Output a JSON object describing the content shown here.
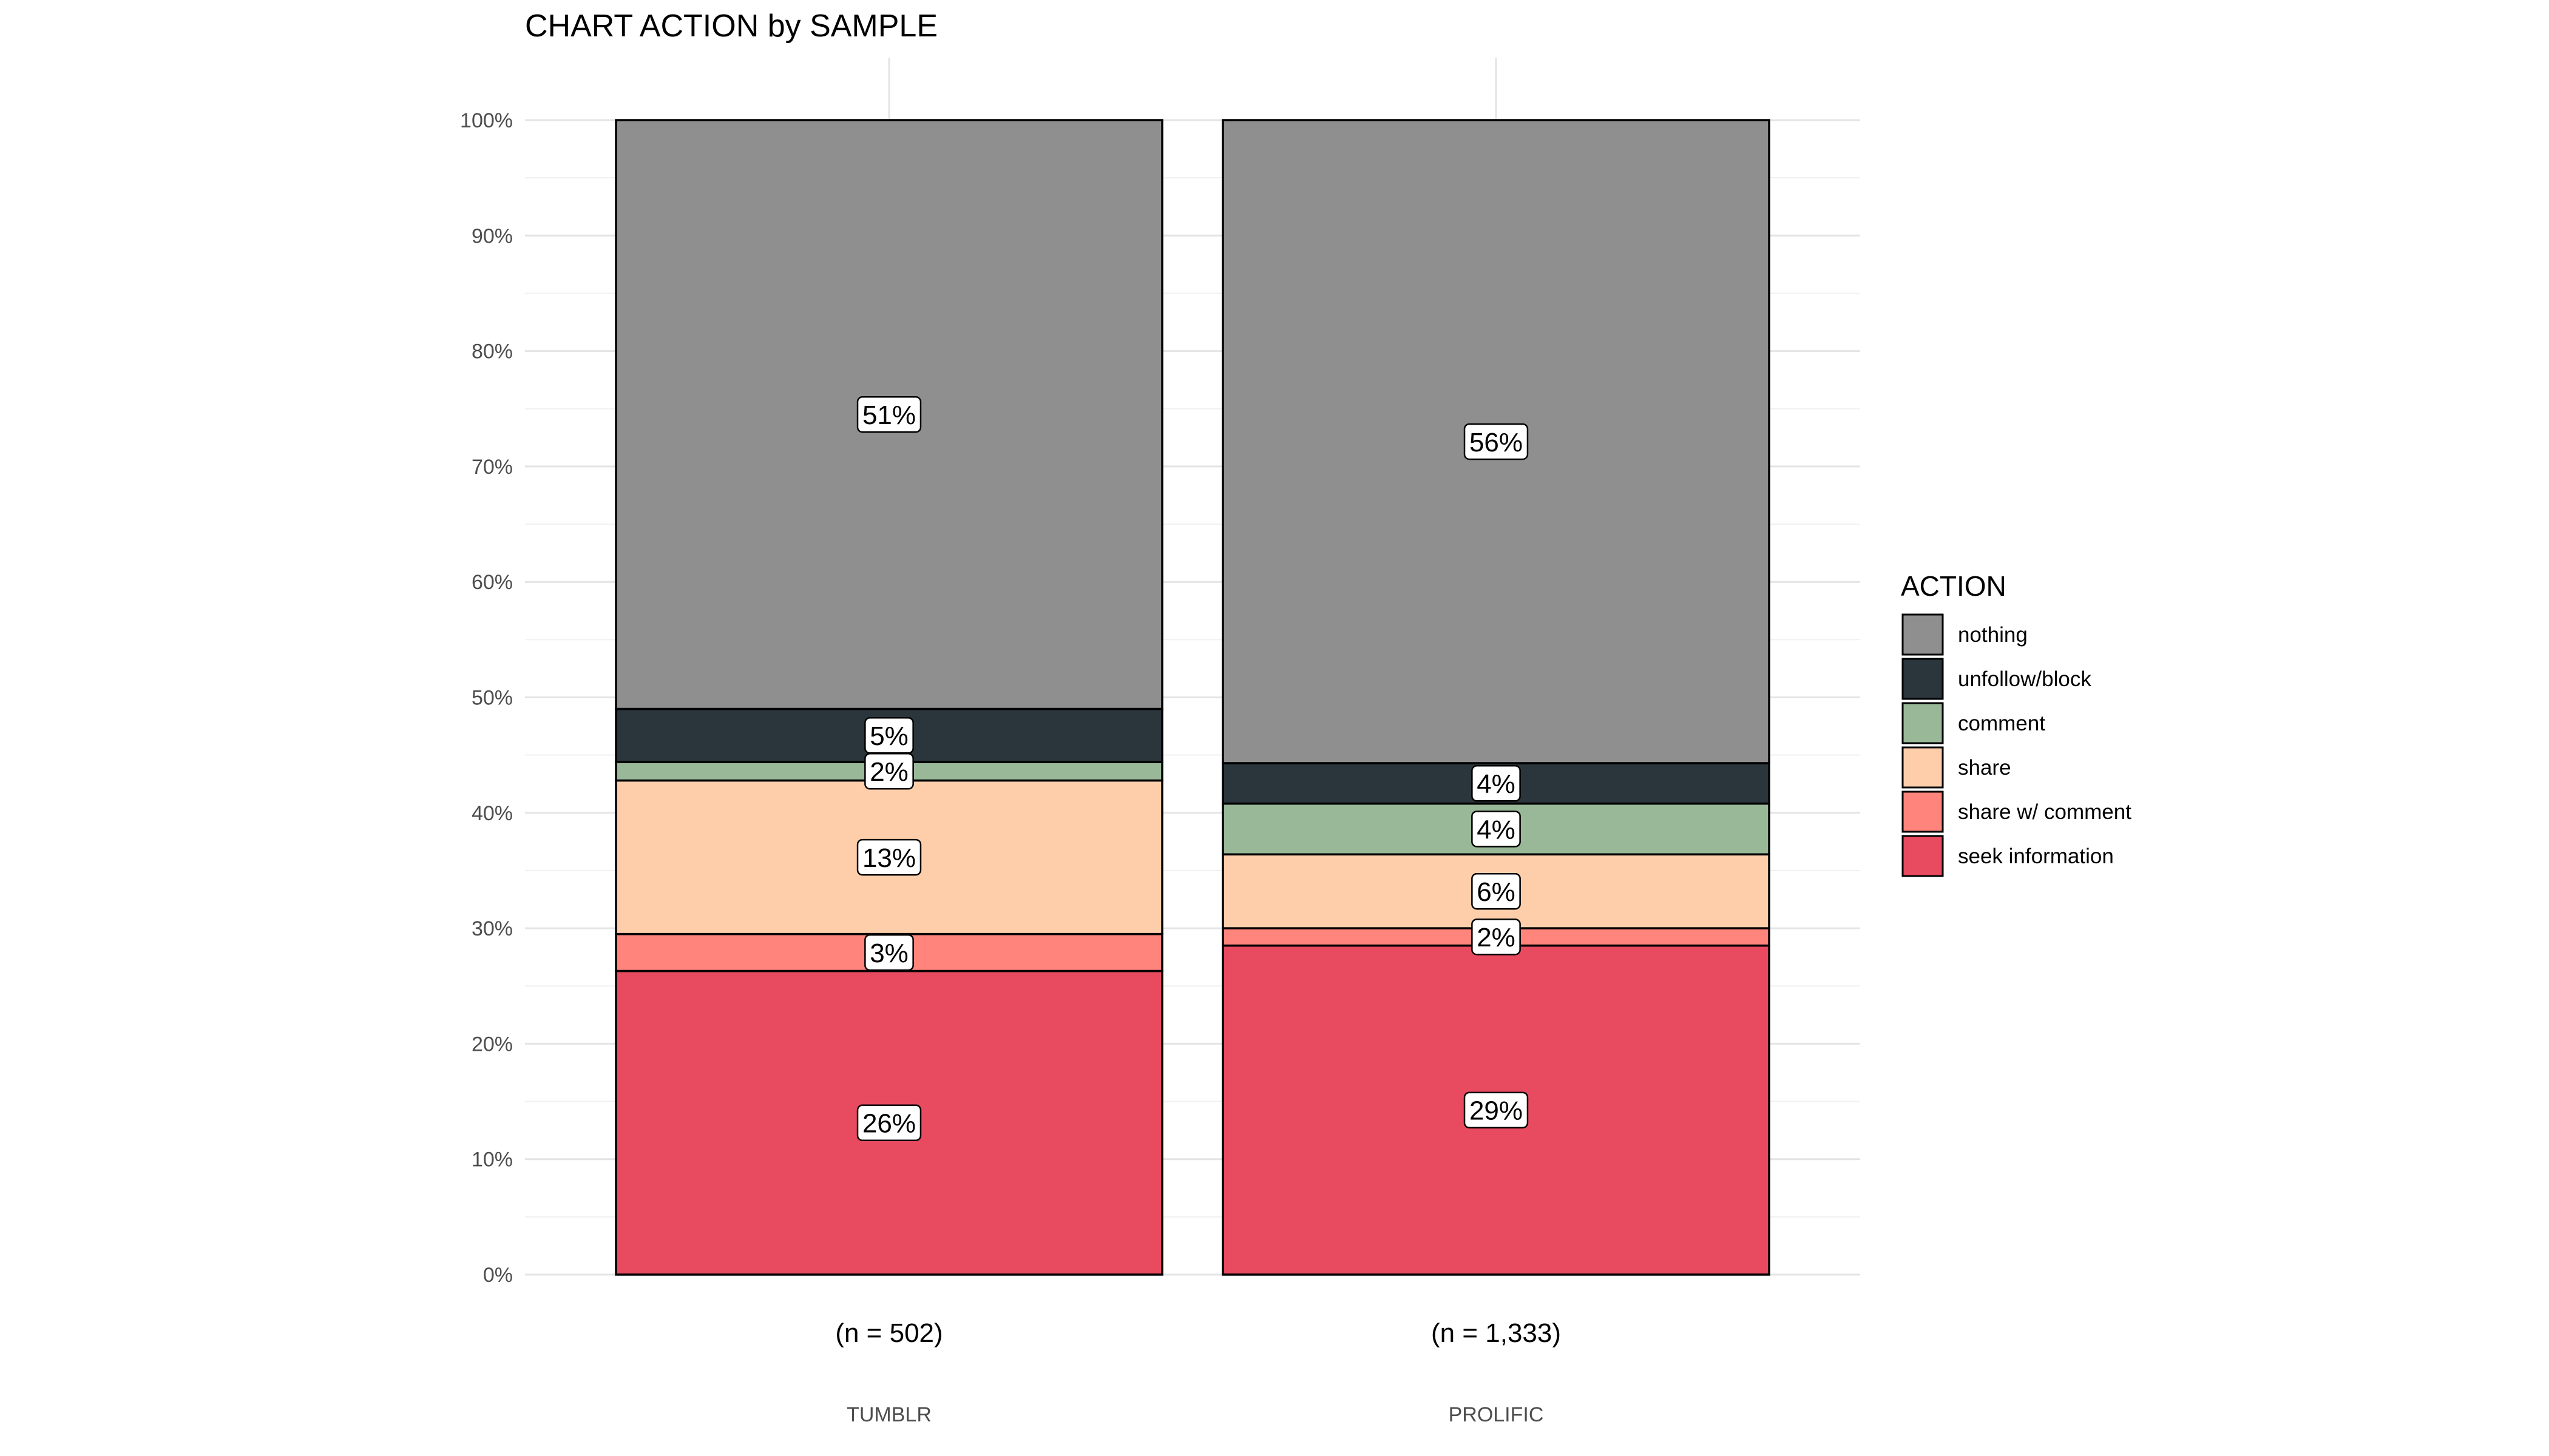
{
  "chart_data": {
    "type": "bar",
    "stacked": true,
    "normalized": true,
    "title": "CHART ACTION by SAMPLE",
    "xlabel": "",
    "ylabel": "",
    "ylim": [
      0,
      100
    ],
    "y_ticks": [
      "0%",
      "10%",
      "20%",
      "30%",
      "40%",
      "50%",
      "60%",
      "70%",
      "80%",
      "90%",
      "100%"
    ],
    "grid": true,
    "categories": [
      "TUMBLR",
      "PROLIFIC"
    ],
    "sample_sizes": [
      "(n = 502)",
      "(n = 1,333)"
    ],
    "legend": {
      "title": "ACTION",
      "position": "right"
    },
    "series": [
      {
        "name": "seek information",
        "color": "#E84A5F",
        "values": [
          26.3,
          28.5
        ],
        "labels": [
          "26%",
          "29%"
        ]
      },
      {
        "name": "share w/ comment",
        "color": "#FF847C",
        "values": [
          3.2,
          1.5
        ],
        "labels": [
          "3%",
          "2%"
        ]
      },
      {
        "name": "share",
        "color": "#FECEAB",
        "values": [
          13.3,
          6.4
        ],
        "labels": [
          "13%",
          "6%"
        ]
      },
      {
        "name": "comment",
        "color": "#99B898",
        "values": [
          1.6,
          4.4
        ],
        "labels": [
          "2%",
          "4%"
        ]
      },
      {
        "name": "unfollow/block",
        "color": "#2A363B",
        "values": [
          4.6,
          3.5
        ],
        "labels": [
          "5%",
          "4%"
        ]
      },
      {
        "name": "nothing",
        "color": "#8F8F8F",
        "values": [
          51.0,
          55.7
        ],
        "labels": [
          "51%",
          "56%"
        ]
      }
    ]
  }
}
